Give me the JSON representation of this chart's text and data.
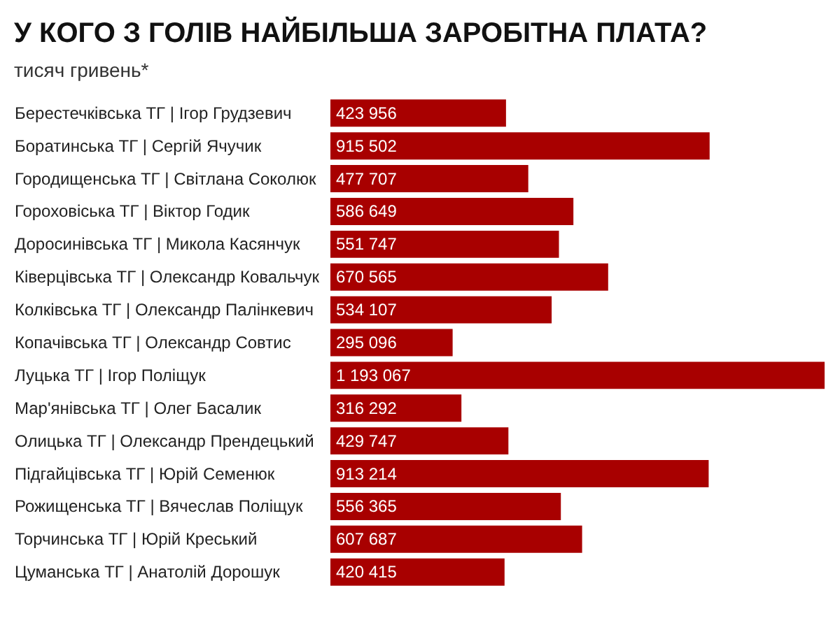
{
  "chart_data": {
    "type": "bar",
    "orientation": "horizontal",
    "title": "У КОГО З ГОЛІВ НАЙБІЛЬША ЗАРОБІТНА ПЛАТА?",
    "subtitle": "тисяч гривень*",
    "categories": [
      "Берестечківська ТГ | Ігор Грудзевич",
      "Боратинська ТГ | Сергій Ячучик",
      "Городищенська ТГ | Світлана Соколюк",
      "Гороховіська ТГ | Віктор Годик",
      "Доросинівська ТГ | Микола Касянчук",
      "Ківерцівська ТГ | Олександр Ковальчук",
      "Колківська ТГ | Олександр Палінкевич",
      "Копачівська ТГ | Олександр Совтис",
      "Луцька ТГ | Ігор Поліщук",
      "Мар'янівська ТГ | Олег Басалик",
      "Олицька ТГ | Олександр Прендецький",
      "Підгайцівська ТГ | Юрій Семенюк",
      "Рожищенська ТГ | Вячеслав Поліщук",
      "Торчинська ТГ | Юрій Креський",
      "Цуманська ТГ | Анатолій Дорошук"
    ],
    "values": [
      423956,
      915502,
      477707,
      586649,
      551747,
      670565,
      534107,
      295096,
      1193067,
      316292,
      429747,
      913214,
      556365,
      607687,
      420415
    ],
    "value_labels": [
      "423 956",
      "915 502",
      "477 707",
      "586 649",
      "551 747",
      "670 565",
      "534 107",
      "295 096",
      "1 193 067",
      "316 292",
      "429 747",
      "913 214",
      "556 365",
      "607 687",
      "420 415"
    ],
    "color": "#a80000",
    "grid": false
  }
}
